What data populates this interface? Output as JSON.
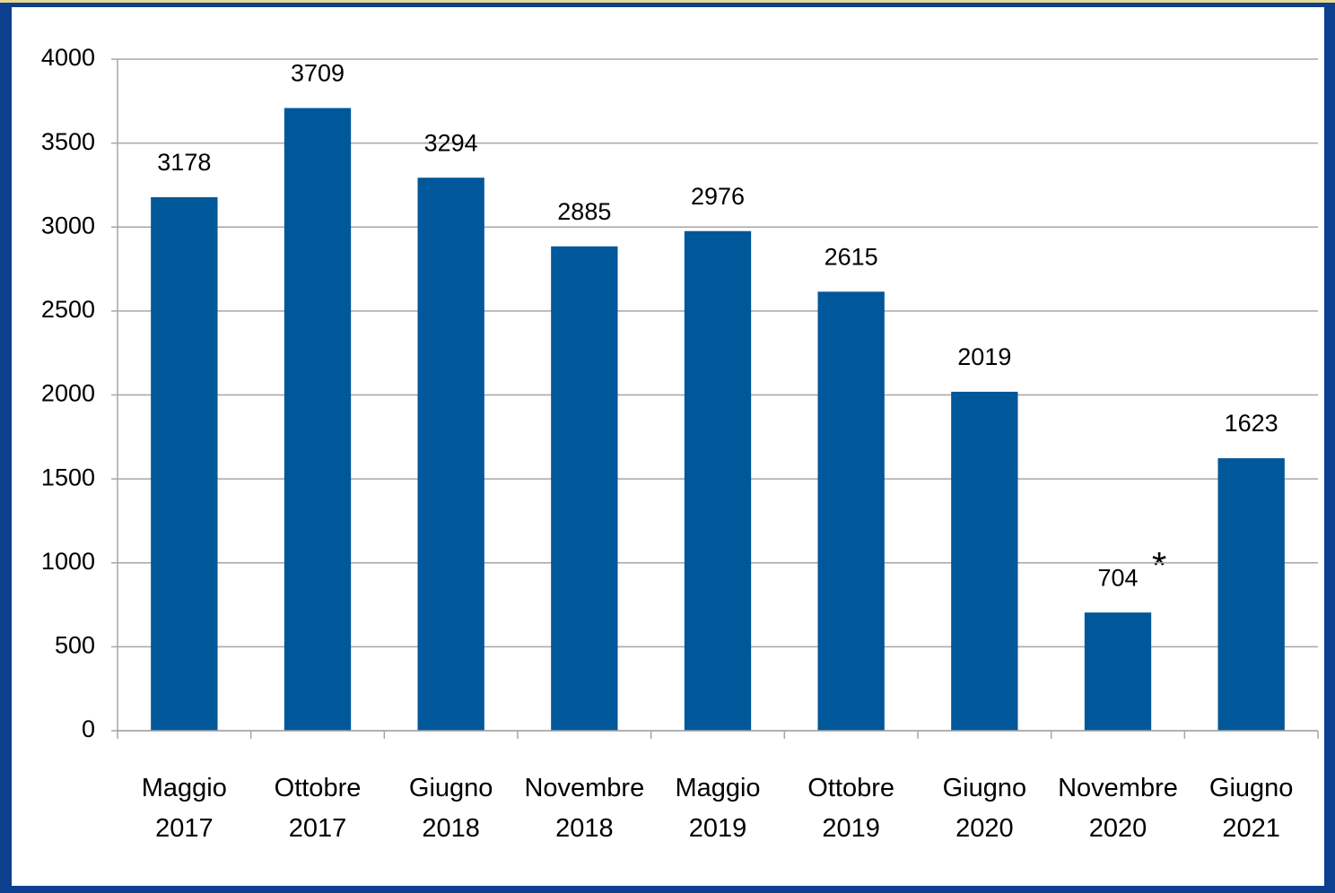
{
  "chart_data": {
    "type": "bar",
    "categories": [
      "Maggio 2017",
      "Ottobre 2017",
      "Giugno 2018",
      "Novembre 2018",
      "Maggio 2019",
      "Ottobre 2019",
      "Giugno 2020",
      "Novembre 2020",
      "Giugno 2021"
    ],
    "values": [
      3178,
      3709,
      3294,
      2885,
      2976,
      2615,
      2019,
      704,
      1623
    ],
    "color": "#00579a",
    "ylim": [
      0,
      4000
    ],
    "yticks": [
      0,
      500,
      1000,
      1500,
      2000,
      2500,
      3000,
      3500,
      4000
    ],
    "grid": true,
    "annotation": "*"
  }
}
